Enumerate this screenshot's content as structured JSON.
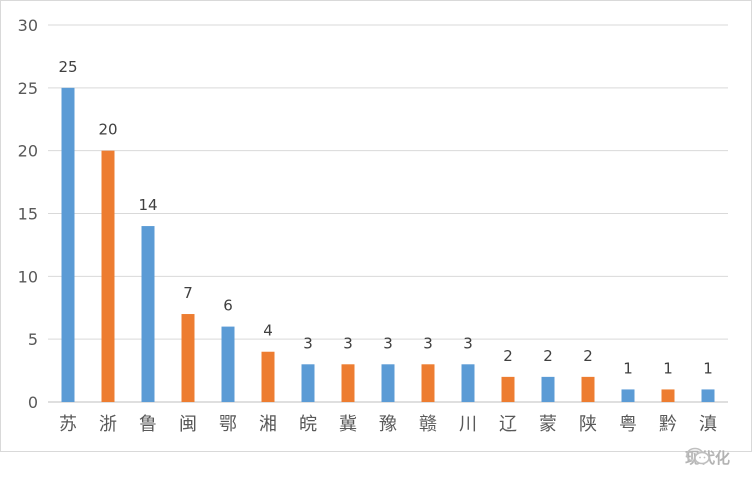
{
  "chart_data": {
    "type": "bar",
    "categories": [
      "苏",
      "浙",
      "鲁",
      "闽",
      "鄂",
      "湘",
      "皖",
      "冀",
      "豫",
      "赣",
      "川",
      "辽",
      "蒙",
      "陕",
      "粤",
      "黔",
      "滇"
    ],
    "values": [
      25,
      20,
      14,
      7,
      6,
      4,
      3,
      3,
      3,
      3,
      3,
      2,
      2,
      2,
      1,
      1,
      1
    ],
    "bar_colors": [
      "#5b9bd5",
      "#ed7d31",
      "#5b9bd5",
      "#ed7d31",
      "#5b9bd5",
      "#ed7d31",
      "#5b9bd5",
      "#ed7d31",
      "#5b9bd5",
      "#ed7d31",
      "#5b9bd5",
      "#ed7d31",
      "#5b9bd5",
      "#ed7d31",
      "#5b9bd5",
      "#ed7d31",
      "#5b9bd5"
    ],
    "ylim": [
      0,
      30
    ],
    "yticks": [
      0,
      5,
      10,
      15,
      20,
      25,
      30
    ],
    "grid": true,
    "title": "",
    "xlabel": "",
    "ylabel": ""
  },
  "watermark": {
    "text": "现代化",
    "icon": "wechat-icon",
    "color": "#b3b3b3"
  }
}
